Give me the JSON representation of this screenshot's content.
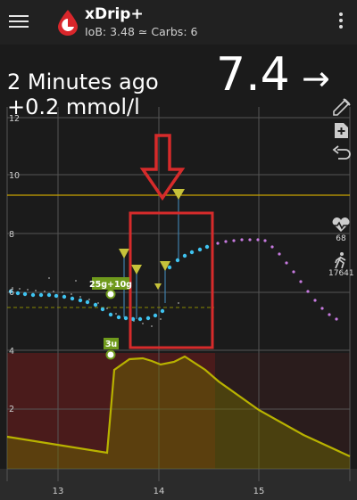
{
  "app": {
    "title": "xDrip+",
    "subtitle": "IoB: 3.48 ≃ Carbs: 6"
  },
  "reading": {
    "age": "2 Minutes ago",
    "delta": "+0.2 mmol/l",
    "value": "7.4",
    "trend": "→"
  },
  "side_panel": {
    "heart_rate": "68",
    "steps": "17641"
  },
  "treatments": {
    "carbs_label": "25g+10g",
    "insulin_label": "3u"
  },
  "y_ticks": [
    "12",
    "10",
    "8",
    "6",
    "4",
    "2"
  ],
  "x_ticks": [
    "13",
    "14",
    "15"
  ],
  "icons": [
    "menu-icon",
    "xdrip-drop-icon",
    "overflow-menu-icon",
    "eyedropper-icon",
    "add-note-icon",
    "undo-icon",
    "heart-rate-icon",
    "walking-icon"
  ],
  "colors": {
    "reading": "#3fc3f0",
    "predicted": "#c77ae0",
    "high_line": "#c9a400",
    "low_line": "#a7a000",
    "iob": "#b8b200",
    "arrow": "#d62b2b"
  }
}
